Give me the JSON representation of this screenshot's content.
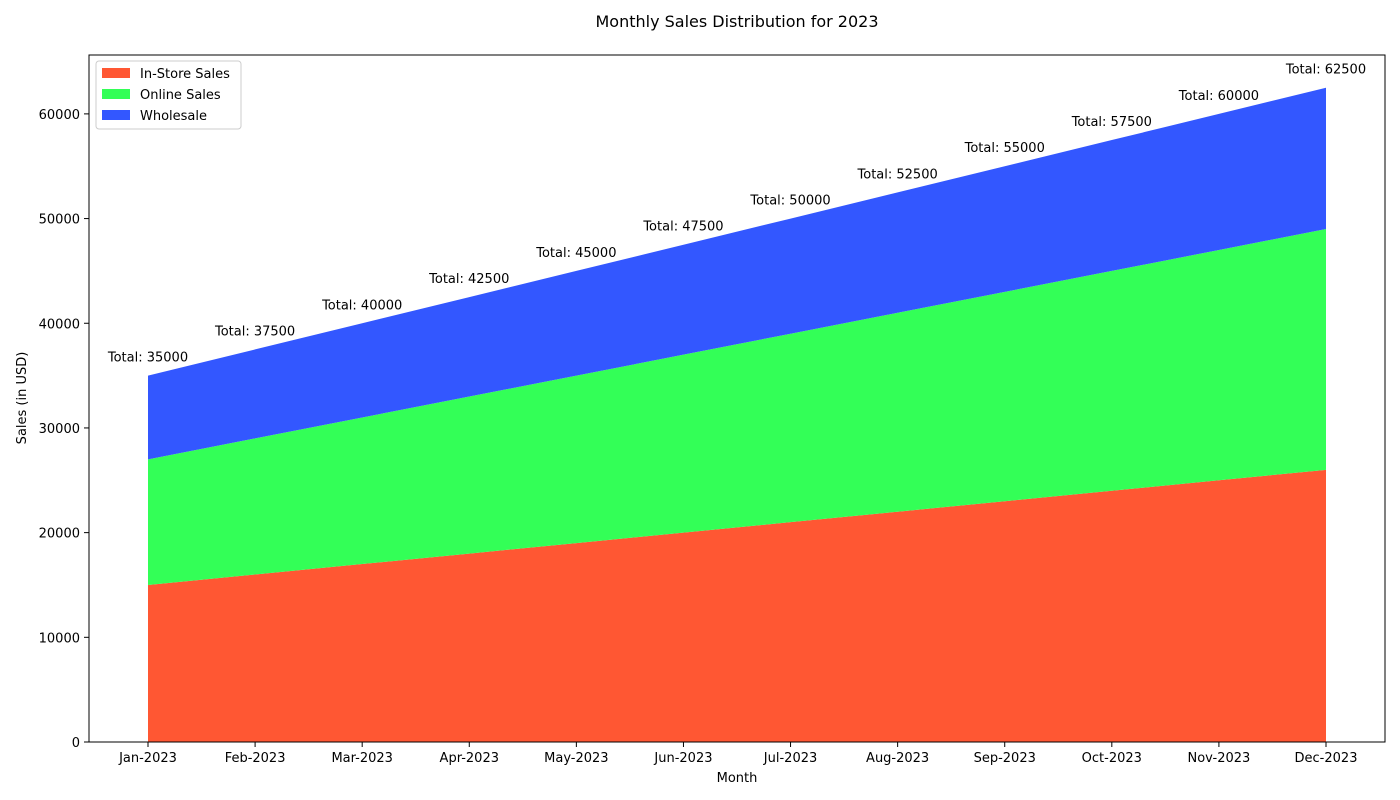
{
  "chart_data": {
    "type": "area",
    "stacked": true,
    "title": "Monthly Sales Distribution for 2023",
    "xlabel": "Month",
    "ylabel": "Sales (in USD)",
    "categories": [
      "Jan-2023",
      "Feb-2023",
      "Mar-2023",
      "Apr-2023",
      "May-2023",
      "Jun-2023",
      "Jul-2023",
      "Aug-2023",
      "Sep-2023",
      "Oct-2023",
      "Nov-2023",
      "Dec-2023"
    ],
    "ylim": [
      0,
      65625
    ],
    "yticks": [
      0,
      10000,
      20000,
      30000,
      40000,
      50000,
      60000
    ],
    "series": [
      {
        "name": "In-Store Sales",
        "color": "#FF5733",
        "values": [
          15000,
          16000,
          17000,
          18000,
          19000,
          20000,
          21000,
          22000,
          23000,
          24000,
          25000,
          26000
        ]
      },
      {
        "name": "Online Sales",
        "color": "#33FF57",
        "values": [
          12000,
          13000,
          14000,
          15000,
          16000,
          17000,
          18000,
          19000,
          20000,
          21000,
          22000,
          23000
        ]
      },
      {
        "name": "Wholesale",
        "color": "#3357FF",
        "values": [
          8000,
          8500,
          9000,
          9500,
          10000,
          10500,
          11000,
          11500,
          12000,
          12500,
          13000,
          13500
        ]
      }
    ],
    "annotations": [
      "Total: 35000",
      "Total: 37500",
      "Total: 40000",
      "Total: 42500",
      "Total: 45000",
      "Total: 47500",
      "Total: 50000",
      "Total: 52500",
      "Total: 55000",
      "Total: 57500",
      "Total: 60000",
      "Total: 62500"
    ],
    "legend_position": "top-left",
    "grid": false
  }
}
